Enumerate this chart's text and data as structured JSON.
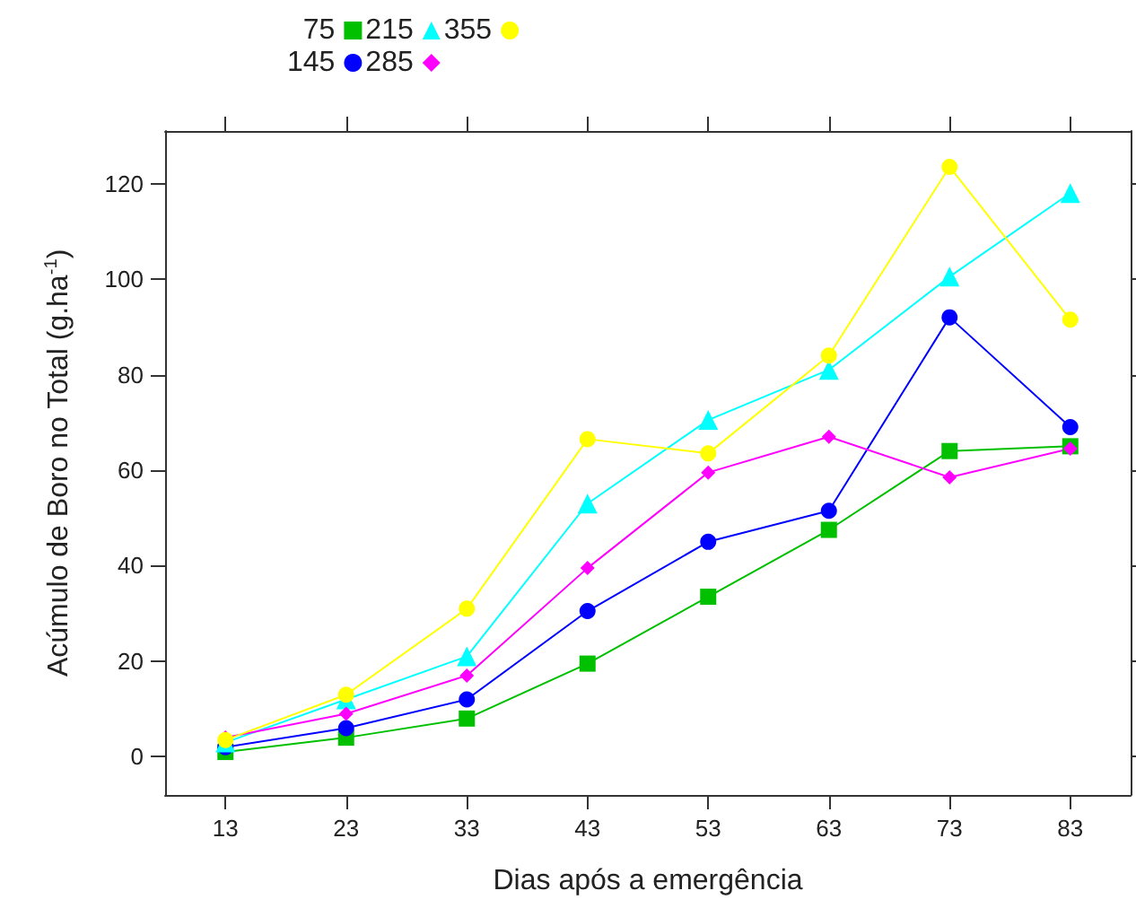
{
  "chart_data": {
    "type": "line",
    "xlabel": "Dias após a emergência",
    "ylabel": "Acúmulo de Boro no Total (g.ha$^{-1}$)",
    "categories": [
      "13",
      "23",
      "33",
      "43",
      "53",
      "63",
      "73",
      "83"
    ],
    "ylim": [
      -8,
      131
    ],
    "yticks": [
      0,
      20,
      40,
      60,
      80,
      100,
      120
    ],
    "grid": false,
    "legend": "top",
    "line_style": "solid",
    "series": [
      {
        "name": "75",
        "color": "#00c000",
        "marker": "square",
        "values": [
          1,
          4,
          8,
          19.5,
          33.5,
          47.5,
          64,
          65
        ]
      },
      {
        "name": "145",
        "color": "#0000ff",
        "marker": "circle",
        "values": [
          2,
          6,
          12,
          30.5,
          45,
          51.5,
          92,
          69
        ]
      },
      {
        "name": "215",
        "color": "#00ffff",
        "marker": "triangle",
        "values": [
          3,
          12,
          21,
          53,
          70.5,
          81,
          100.5,
          118
        ]
      },
      {
        "name": "285",
        "color": "#ff00ff",
        "marker": "diamond",
        "values": [
          4,
          9,
          17,
          39.5,
          59.5,
          67,
          58.5,
          64.5
        ]
      },
      {
        "name": "355",
        "color": "#ffff00",
        "marker": "circle",
        "values": [
          3.5,
          13,
          31,
          66.5,
          63.5,
          84,
          123.5,
          91.5
        ]
      }
    ]
  }
}
